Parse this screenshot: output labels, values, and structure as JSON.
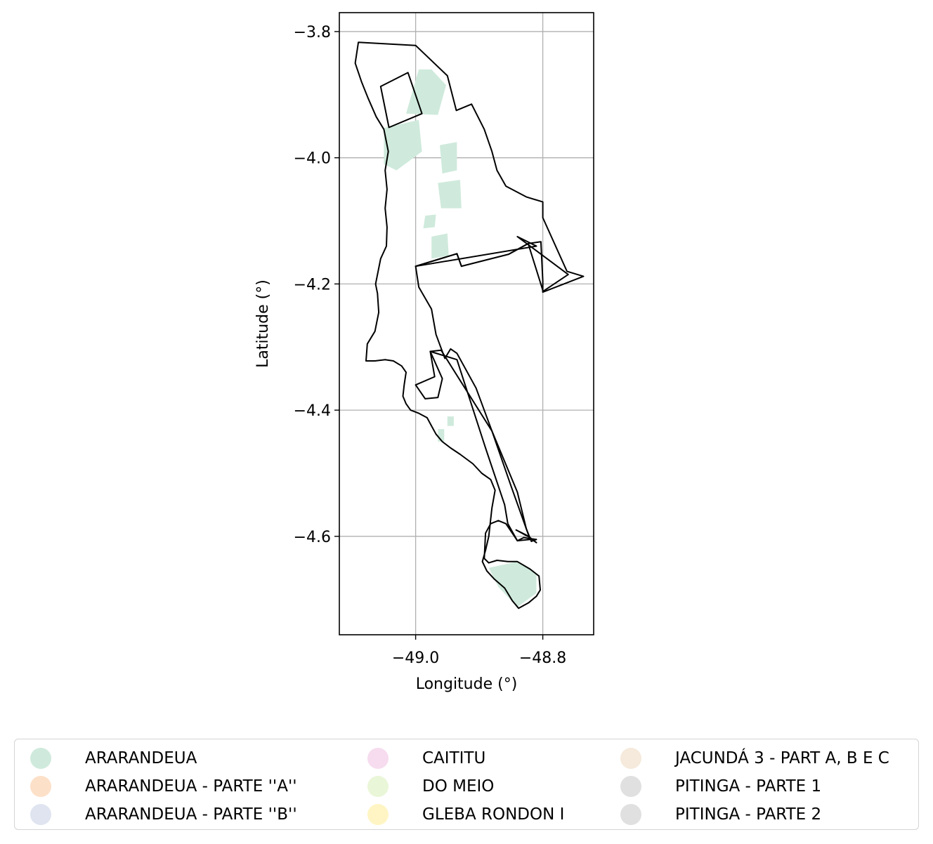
{
  "chart_data": {
    "type": "map",
    "xlabel": "Longitude (°)",
    "ylabel": "Latitude (°)",
    "xlim": [
      -49.12,
      -48.72
    ],
    "ylim": [
      -4.756,
      -3.77
    ],
    "grid": true,
    "x_ticks": [
      {
        "value": -49.0,
        "label": "−49.0"
      },
      {
        "value": -48.8,
        "label": "−48.8"
      }
    ],
    "y_ticks": [
      {
        "value": -3.8,
        "label": "−3.8"
      },
      {
        "value": -4.0,
        "label": "−4.0"
      },
      {
        "value": -4.2,
        "label": "−4.2"
      },
      {
        "value": -4.4,
        "label": "−4.4"
      },
      {
        "value": -4.6,
        "label": "−4.6"
      }
    ],
    "legend_placement": "bottom, outside, 3 columns",
    "boundary_color": "#000000",
    "fill_color": "#cfeadc",
    "legend": [
      {
        "label": "ARARANDEUA",
        "color": "#cfeadc"
      },
      {
        "label": "ARARANDEUA - PARTE ''A''",
        "color": "#fde0c8"
      },
      {
        "label": "ARARANDEUA - PARTE ''B''",
        "color": "#dfe4f0"
      },
      {
        "label": "CAITITU",
        "color": "#f6dcee"
      },
      {
        "label": "DO MEIO",
        "color": "#eaf6d8"
      },
      {
        "label": "GLEBA RONDON I",
        "color": "#fff5c4"
      },
      {
        "label": "JACUNDÁ 3 - PART A, B E C",
        "color": "#f5eadb"
      },
      {
        "label": "PITINGA - PARTE 1",
        "color": "#e0e0e0"
      },
      {
        "label": "PITINGA - PARTE 2",
        "color": "#e0e0e0"
      }
    ],
    "outer_boundary": [
      [
        -49.09,
        -3.817
      ],
      [
        -49.0,
        -3.822
      ],
      [
        -48.95,
        -3.87
      ],
      [
        -48.936,
        -3.925
      ],
      [
        -48.912,
        -3.915
      ],
      [
        -48.902,
        -3.935
      ],
      [
        -48.892,
        -3.955
      ],
      [
        -48.88,
        -3.99
      ],
      [
        -48.872,
        -4.02
      ],
      [
        -48.858,
        -4.045
      ],
      [
        -48.826,
        -4.062
      ],
      [
        -48.8,
        -4.07
      ],
      [
        -48.8,
        -4.095
      ],
      [
        -48.762,
        -4.18
      ],
      [
        -48.736,
        -4.188
      ],
      [
        -48.8,
        -4.213
      ],
      [
        -48.8,
        -4.195
      ],
      [
        -48.803,
        -4.133
      ],
      [
        -48.823,
        -4.136
      ],
      [
        -48.854,
        -4.153
      ],
      [
        -48.928,
        -4.172
      ],
      [
        -48.935,
        -4.152
      ],
      [
        -49.0,
        -4.172
      ],
      [
        -48.995,
        -4.205
      ],
      [
        -48.975,
        -4.24
      ],
      [
        -48.968,
        -4.28
      ],
      [
        -48.954,
        -4.318
      ],
      [
        -48.945,
        -4.303
      ],
      [
        -48.935,
        -4.31
      ],
      [
        -48.905,
        -4.365
      ],
      [
        -48.88,
        -4.433
      ],
      [
        -48.84,
        -4.53
      ],
      [
        -48.826,
        -4.588
      ],
      [
        -48.818,
        -4.608
      ],
      [
        -48.81,
        -4.605
      ],
      [
        -48.83,
        -4.602
      ],
      [
        -48.84,
        -4.607
      ],
      [
        -48.848,
        -4.595
      ],
      [
        -48.858,
        -4.58
      ],
      [
        -48.87,
        -4.575
      ],
      [
        -48.882,
        -4.58
      ],
      [
        -48.89,
        -4.595
      ],
      [
        -48.892,
        -4.635
      ],
      [
        -48.885,
        -4.642
      ],
      [
        -48.872,
        -4.638
      ],
      [
        -48.855,
        -4.64
      ],
      [
        -48.84,
        -4.64
      ],
      [
        -48.82,
        -4.652
      ],
      [
        -48.806,
        -4.663
      ],
      [
        -48.804,
        -4.685
      ],
      [
        -48.81,
        -4.695
      ],
      [
        -48.822,
        -4.705
      ],
      [
        -48.838,
        -4.714
      ],
      [
        -48.848,
        -4.702
      ],
      [
        -48.86,
        -4.682
      ],
      [
        -48.876,
        -4.668
      ],
      [
        -48.888,
        -4.655
      ],
      [
        -48.895,
        -4.64
      ],
      [
        -48.89,
        -4.622
      ],
      [
        -48.885,
        -4.6
      ],
      [
        -48.88,
        -4.555
      ],
      [
        -48.875,
        -4.527
      ],
      [
        -48.882,
        -4.51
      ],
      [
        -48.896,
        -4.5
      ],
      [
        -48.91,
        -4.485
      ],
      [
        -48.93,
        -4.47
      ],
      [
        -48.945,
        -4.46
      ],
      [
        -48.958,
        -4.45
      ],
      [
        -48.968,
        -4.438
      ],
      [
        -48.975,
        -4.425
      ],
      [
        -48.982,
        -4.412
      ],
      [
        -48.995,
        -4.405
      ],
      [
        -49.008,
        -4.4
      ],
      [
        -49.015,
        -4.39
      ],
      [
        -49.02,
        -4.378
      ],
      [
        -49.018,
        -4.36
      ],
      [
        -49.015,
        -4.34
      ],
      [
        -49.022,
        -4.33
      ],
      [
        -49.035,
        -4.322
      ],
      [
        -49.048,
        -4.32
      ],
      [
        -49.064,
        -4.322
      ],
      [
        -49.078,
        -4.322
      ],
      [
        -49.076,
        -4.295
      ],
      [
        -49.064,
        -4.275
      ],
      [
        -49.058,
        -4.245
      ],
      [
        -49.06,
        -4.215
      ],
      [
        -49.063,
        -4.2
      ],
      [
        -49.055,
        -4.16
      ],
      [
        -49.046,
        -4.14
      ],
      [
        -49.045,
        -4.11
      ],
      [
        -49.048,
        -4.08
      ],
      [
        -49.045,
        -4.05
      ],
      [
        -49.048,
        -4.02
      ],
      [
        -49.043,
        -3.99
      ],
      [
        -49.05,
        -3.955
      ],
      [
        -49.062,
        -3.935
      ],
      [
        -49.075,
        -3.905
      ],
      [
        -49.085,
        -3.88
      ],
      [
        -49.095,
        -3.85
      ],
      [
        -49.09,
        -3.817
      ]
    ],
    "parcels": [
      [
        [
          -49.055,
          -3.887
        ],
        [
          -49.012,
          -3.865
        ],
        [
          -48.99,
          -3.93
        ],
        [
          -49.042,
          -3.952
        ]
      ],
      [
        [
          -49.0,
          -4.172
        ],
        [
          -48.935,
          -4.152
        ],
        [
          -48.928,
          -4.172
        ],
        [
          -48.854,
          -4.153
        ],
        [
          -48.823,
          -4.136
        ],
        [
          -48.8,
          -4.21
        ],
        [
          -48.8,
          -4.212
        ],
        [
          -48.76,
          -4.185
        ],
        [
          -48.84,
          -4.125
        ],
        [
          -48.81,
          -4.14
        ]
      ],
      [
        [
          -48.977,
          -4.307
        ],
        [
          -48.96,
          -4.305
        ],
        [
          -48.88,
          -4.433
        ],
        [
          -48.85,
          -4.52
        ],
        [
          -48.826,
          -4.588
        ],
        [
          -48.82,
          -4.605
        ],
        [
          -48.84,
          -4.607
        ],
        [
          -48.855,
          -4.58
        ],
        [
          -48.86,
          -4.55
        ],
        [
          -48.89,
          -4.46
        ],
        [
          -48.935,
          -4.32
        ]
      ],
      [
        [
          -48.977,
          -4.307
        ],
        [
          -48.958,
          -4.35
        ],
        [
          -48.965,
          -4.38
        ],
        [
          -48.985,
          -4.382
        ],
        [
          -49.0,
          -4.36
        ],
        [
          -48.97,
          -4.347
        ]
      ],
      [
        [
          -48.842,
          -4.59
        ],
        [
          -48.82,
          -4.602
        ],
        [
          -48.81,
          -4.61
        ],
        [
          -48.826,
          -4.598
        ]
      ]
    ],
    "fill_patches": [
      [
        [
          -49.015,
          -3.93
        ],
        [
          -48.965,
          -3.932
        ],
        [
          -48.952,
          -3.885
        ],
        [
          -48.975,
          -3.86
        ],
        [
          -48.995,
          -3.86
        ]
      ],
      [
        [
          -49.05,
          -3.953
        ],
        [
          -48.995,
          -3.94
        ],
        [
          -48.99,
          -3.99
        ],
        [
          -49.03,
          -4.02
        ],
        [
          -49.05,
          -4.01
        ]
      ],
      [
        [
          -48.962,
          -3.98
        ],
        [
          -48.935,
          -3.975
        ],
        [
          -48.935,
          -4.02
        ],
        [
          -48.958,
          -4.025
        ]
      ],
      [
        [
          -48.965,
          -4.04
        ],
        [
          -48.93,
          -4.035
        ],
        [
          -48.928,
          -4.08
        ],
        [
          -48.96,
          -4.08
        ]
      ],
      [
        [
          -48.985,
          -4.092
        ],
        [
          -48.968,
          -4.09
        ],
        [
          -48.97,
          -4.11
        ],
        [
          -48.988,
          -4.112
        ]
      ],
      [
        [
          -48.975,
          -4.125
        ],
        [
          -48.95,
          -4.12
        ],
        [
          -48.948,
          -4.155
        ],
        [
          -48.975,
          -4.16
        ]
      ],
      [
        [
          -48.965,
          -4.43
        ],
        [
          -48.955,
          -4.43
        ],
        [
          -48.955,
          -4.45
        ],
        [
          -48.965,
          -4.45
        ]
      ],
      [
        [
          -48.95,
          -4.41
        ],
        [
          -48.94,
          -4.41
        ],
        [
          -48.94,
          -4.425
        ],
        [
          -48.95,
          -4.425
        ]
      ],
      [
        [
          -48.885,
          -4.65
        ],
        [
          -48.84,
          -4.64
        ],
        [
          -48.81,
          -4.66
        ],
        [
          -48.81,
          -4.69
        ],
        [
          -48.84,
          -4.712
        ],
        [
          -48.87,
          -4.68
        ]
      ]
    ]
  }
}
